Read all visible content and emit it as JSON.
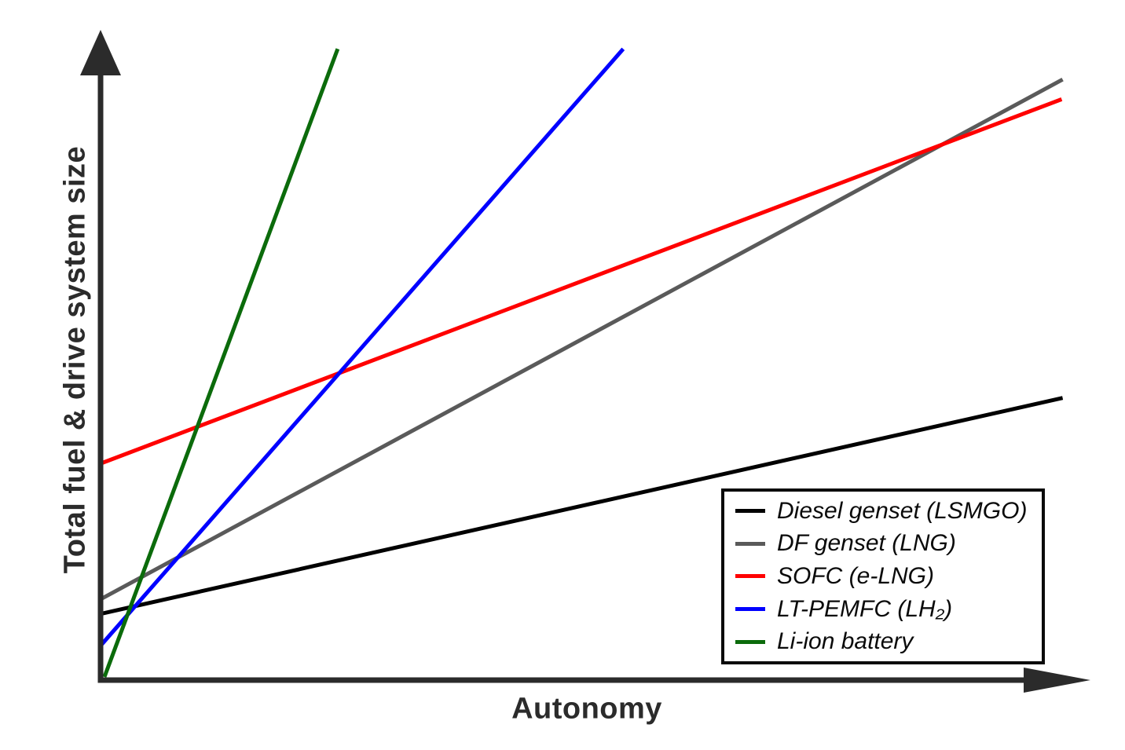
{
  "chart_data": {
    "type": "line",
    "title": "",
    "xlabel": "Autonomy",
    "ylabel": "Total fuel & drive system size",
    "xlim": [
      0,
      1
    ],
    "ylim": [
      0,
      1
    ],
    "grid": false,
    "axis_style": "arrow-axes-no-ticks",
    "axis_color": "#2b2b2b",
    "legend_position": "lower right",
    "legend_border_color": "#0a0a0a",
    "series": [
      {
        "id": "diesel-genset",
        "name": "Diesel genset (LSMGO)",
        "color": "#000000",
        "x": [
          0.0,
          0.994
        ],
        "y": [
          0.104,
          0.443
        ]
      },
      {
        "id": "df-genset",
        "name": "DF genset (LNG)",
        "color": "#5a5a5a",
        "x": [
          0.0,
          0.994
        ],
        "y": [
          0.127,
          0.943
        ]
      },
      {
        "id": "sofc",
        "name": "SOFC (e-LNG)",
        "color": "#ff0000",
        "x": [
          0.0,
          0.993
        ],
        "y": [
          0.34,
          0.912
        ]
      },
      {
        "id": "lt-pemfc",
        "name": "LT-PEMFC (LH₂)",
        "color": "#0000ff",
        "x": [
          0.0,
          0.54
        ],
        "y": [
          0.054,
          0.991
        ]
      },
      {
        "id": "li-ion-battery",
        "name": "Li-ion battery",
        "color": "#0b6b0b",
        "x": [
          0.004,
          0.245
        ],
        "y": [
          0.005,
          0.991
        ]
      }
    ]
  }
}
